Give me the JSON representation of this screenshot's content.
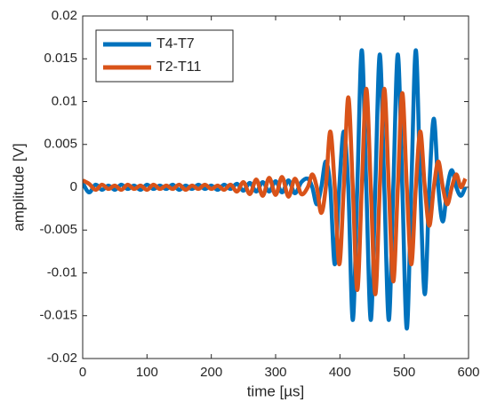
{
  "chart_data": {
    "type": "line",
    "xlabel": "time [µs]",
    "ylabel": "amplitude [V]",
    "x": [
      0,
      10,
      20,
      30,
      40,
      50,
      60,
      70,
      80,
      90,
      100,
      110,
      120,
      130,
      140,
      150,
      160,
      170,
      180,
      190,
      200,
      210,
      220,
      230,
      240,
      250,
      260,
      270,
      280,
      290,
      300,
      310,
      320,
      330,
      340,
      350,
      357,
      364,
      371,
      378,
      385,
      392,
      399,
      406,
      413,
      420,
      427,
      434,
      441,
      448,
      455,
      462,
      469,
      476,
      483,
      490,
      497,
      504,
      511,
      518,
      525,
      532,
      539,
      546,
      553,
      560,
      567,
      574,
      581,
      588,
      595
    ],
    "series": [
      {
        "name": "T4-T7",
        "color": "#0072bd",
        "values": [
          0.0005,
          -0.0006,
          0.0003,
          -0.0003,
          0.0002,
          -0.0003,
          0.0003,
          -0.0002,
          0.0002,
          -0.0003,
          0.0003,
          -0.0002,
          0.0002,
          -0.0002,
          0.0003,
          -0.0003,
          0.0002,
          -0.0002,
          0.0003,
          -0.0002,
          0.0002,
          -0.0003,
          0.0003,
          -0.0002,
          0.0004,
          -0.0004,
          0.0005,
          -0.0005,
          0.0006,
          -0.0005,
          0.0007,
          -0.0006,
          0.0008,
          -0.0007,
          0.0006,
          0.001,
          0,
          -0.002,
          0,
          0.003,
          0,
          -0.009,
          0,
          0.0065,
          0,
          -0.0155,
          0,
          0.016,
          0,
          -0.0155,
          0,
          0.0155,
          0,
          -0.0155,
          0,
          0.0155,
          0,
          -0.0165,
          0,
          0.016,
          0,
          -0.0125,
          0,
          0.008,
          0,
          -0.004,
          0,
          0.002,
          0,
          -0.001,
          0
        ]
      },
      {
        "name": "T2-T11",
        "color": "#d95319",
        "values": [
          0.0008,
          0.0004,
          -0.0003,
          0.0003,
          -0.0002,
          0.0002,
          -0.0003,
          0.0003,
          -0.0002,
          0.0002,
          -0.0003,
          0.0003,
          -0.0002,
          0.0002,
          -0.0002,
          0.0003,
          -0.0003,
          0.0002,
          -0.0002,
          0.0003,
          -0.0002,
          0.0002,
          -0.0003,
          0.0003,
          -0.0005,
          0.0006,
          -0.0008,
          0.0009,
          -0.001,
          0.0011,
          -0.0009,
          0.0012,
          -0.0011,
          0.001,
          -0.0008,
          0,
          0.0015,
          0,
          -0.003,
          0,
          0.0065,
          0,
          -0.009,
          0,
          0.0105,
          0,
          -0.012,
          0,
          0.0115,
          0,
          -0.0125,
          0,
          0.0115,
          0,
          -0.011,
          0,
          0.011,
          0,
          -0.009,
          0,
          0.0065,
          0,
          -0.0045,
          0,
          0.003,
          0,
          -0.002,
          0,
          0.0015,
          0,
          0.001
        ]
      }
    ],
    "xlim": [
      0,
      600
    ],
    "xticks": [
      0,
      100,
      200,
      300,
      400,
      500,
      600
    ],
    "ylim": [
      -0.02,
      0.02
    ],
    "yticks": [
      -0.02,
      -0.015,
      -0.01,
      -0.005,
      0,
      0.005,
      0.01,
      0.015,
      0.02
    ],
    "legend": "northwest",
    "grid": false
  }
}
